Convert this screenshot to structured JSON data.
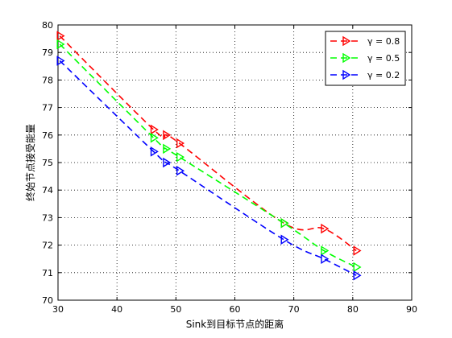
{
  "chart_data": {
    "type": "line",
    "xlabel": "Sink到目标节点的距离",
    "ylabel": "终始节点接受能量",
    "xlim": [
      30,
      90
    ],
    "ylim": [
      70,
      80
    ],
    "xticks": [
      30,
      40,
      50,
      60,
      70,
      80,
      90
    ],
    "yticks": [
      70,
      71,
      72,
      73,
      74,
      75,
      76,
      77,
      78,
      79,
      80
    ],
    "grid": true,
    "legend_position": "top-right",
    "series": [
      {
        "name": "γ = 0.8",
        "color": "#ff0000",
        "marker": "triangle-right",
        "x": [
          30.3,
          46.2,
          48.3,
          50.6,
          68.3,
          75.1,
          80.6
        ],
        "y": [
          79.6,
          76.2,
          76.0,
          75.7,
          72.8,
          72.6,
          71.8
        ]
      },
      {
        "name": "γ = 0.5",
        "color": "#00ff00",
        "marker": "triangle-right",
        "x": [
          30.3,
          46.2,
          48.3,
          50.6,
          68.3,
          75.1,
          80.6
        ],
        "y": [
          79.3,
          75.9,
          75.5,
          75.2,
          72.8,
          71.8,
          71.2
        ]
      },
      {
        "name": "γ = 0.2",
        "color": "#0000ff",
        "marker": "triangle-right",
        "x": [
          30.3,
          46.2,
          48.3,
          50.6,
          68.3,
          75.1,
          80.6
        ],
        "y": [
          78.7,
          75.4,
          75.0,
          74.7,
          72.2,
          71.5,
          70.9
        ]
      }
    ]
  }
}
